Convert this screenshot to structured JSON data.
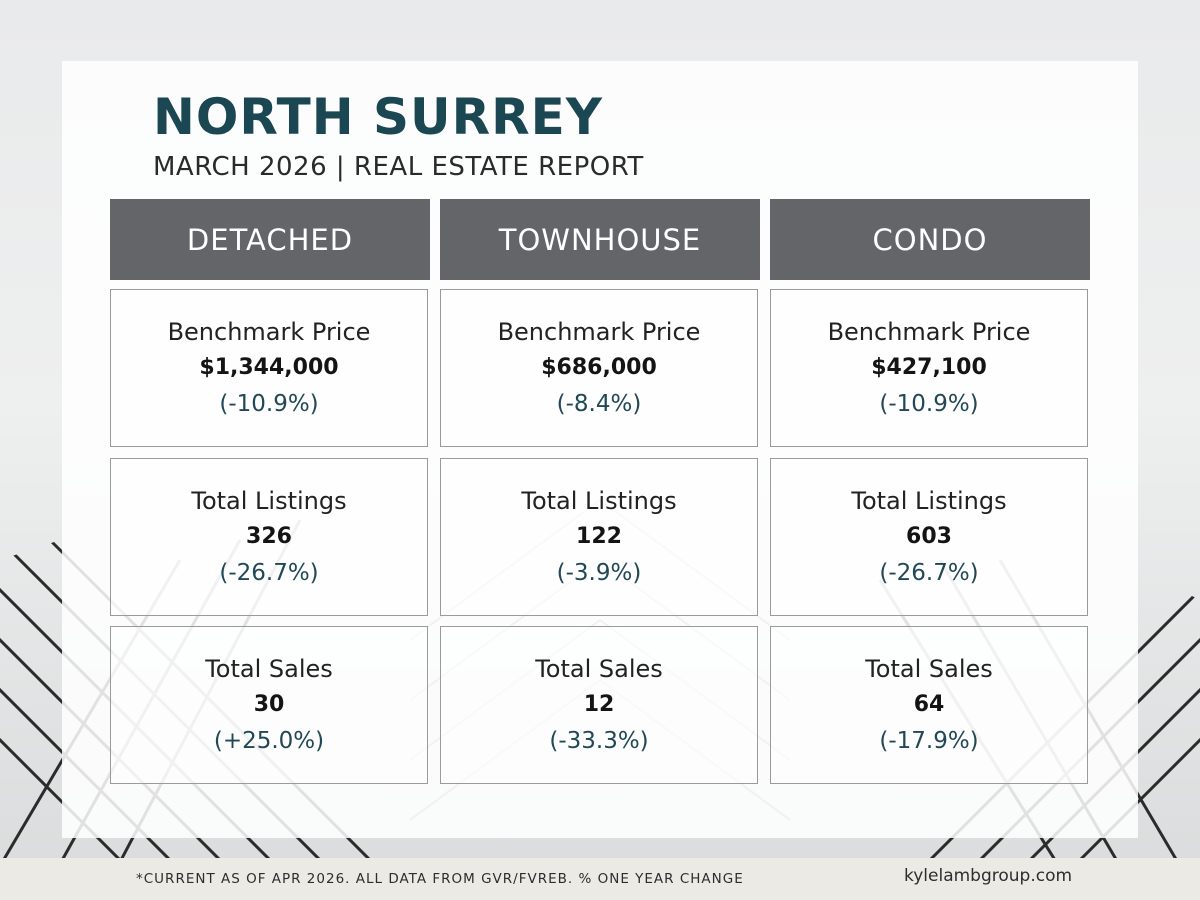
{
  "header": {
    "title": "NORTH SURREY",
    "subtitle": "MARCH 2026 | REAL ESTATE REPORT"
  },
  "columns": [
    {
      "name": "DETACHED",
      "metrics": [
        {
          "label": "Benchmark Price",
          "value": "$1,344,000",
          "change": "(-10.9%)"
        },
        {
          "label": "Total Listings",
          "value": "326",
          "change": "(-26.7%)"
        },
        {
          "label": "Total Sales",
          "value": "30",
          "change": "(+25.0%)"
        }
      ]
    },
    {
      "name": "TOWNHOUSE",
      "metrics": [
        {
          "label": "Benchmark Price",
          "value": "$686,000",
          "change": "(-8.4%)"
        },
        {
          "label": "Total Listings",
          "value": "122",
          "change": "(-3.9%)"
        },
        {
          "label": "Total Sales",
          "value": "12",
          "change": "(-33.3%)"
        }
      ]
    },
    {
      "name": "CONDO",
      "metrics": [
        {
          "label": "Benchmark Price",
          "value": "$427,100",
          "change": "(-10.9%)"
        },
        {
          "label": "Total Listings",
          "value": "603",
          "change": "(-26.7%)"
        },
        {
          "label": "Total Sales",
          "value": "64",
          "change": "(-17.9%)"
        }
      ]
    }
  ],
  "footer": {
    "note": "*CURRENT AS  OF APR 2026. ALL DATA FROM GVR/FVREB.  % ONE YEAR CHANGE",
    "website": "kylelambgroup.com"
  },
  "colors": {
    "title": "#1b4752",
    "header_bg": "#646569",
    "change_text": "#214955",
    "footer_bg": "#ebeae5"
  },
  "icons": [
    "architecture-background-image"
  ]
}
